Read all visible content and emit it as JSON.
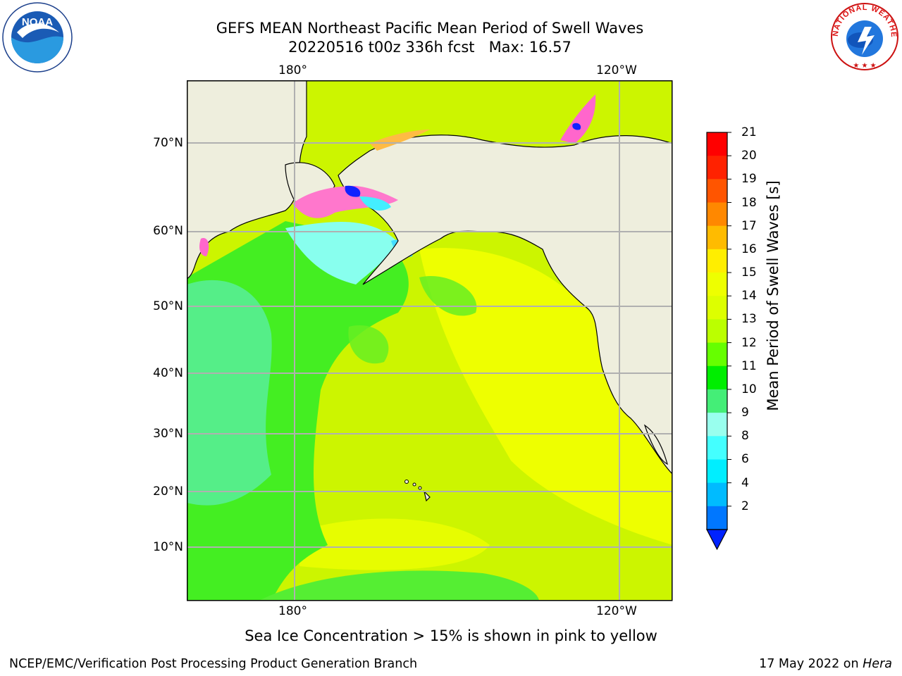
{
  "header": {
    "title_line1": "GEFS MEAN Northeast Pacific Mean Period of Swell Waves",
    "title_line2": "20220516 t00z 336h fcst   Max: 16.57"
  },
  "map": {
    "lon_labels_top": [
      "180°",
      "120°W"
    ],
    "lon_labels_bottom": [
      "180°",
      "120°W"
    ],
    "lat_labels": [
      "70°N",
      "60°N",
      "50°N",
      "40°N",
      "30°N",
      "20°N",
      "10°N"
    ],
    "colors": {
      "land": "#eeeedd",
      "ocean_main": "#ccf500",
      "ocean_yellow": "#eeff00",
      "ocean_green": "#44ee22",
      "ocean_teal": "#55ee88",
      "ocean_cyan": "#88ffee",
      "gridline": "#b0b0b0"
    }
  },
  "colorbar": {
    "label": "Mean Period of Swell Waves [s]",
    "ticks": [
      "21",
      "20",
      "19",
      "18",
      "17",
      "16",
      "15",
      "14",
      "13",
      "12",
      "11",
      "10",
      "9",
      "8",
      "6",
      "4",
      "2"
    ],
    "colors_top_to_bottom": [
      "#ff0000",
      "#ff2200",
      "#ff5500",
      "#ff8800",
      "#ffbb00",
      "#ffee00",
      "#eeff00",
      "#ddff00",
      "#bbff00",
      "#66ff00",
      "#00ee00",
      "#44ee77",
      "#99ffee",
      "#44ffff",
      "#00eeff",
      "#00bbff",
      "#0077ff"
    ],
    "extend_color": "#0022ff"
  },
  "note": "Sea Ice Concentration > 15% is shown in pink to yellow",
  "footer": {
    "left": "NCEP/EMC/Verification Post Processing Product Generation Branch",
    "right_date": "17 May 2022 on ",
    "right_host": "Hera"
  },
  "logos": {
    "noaa_text": "NOAA",
    "nws_text": "NATIONAL WEATHER SERVICE"
  }
}
